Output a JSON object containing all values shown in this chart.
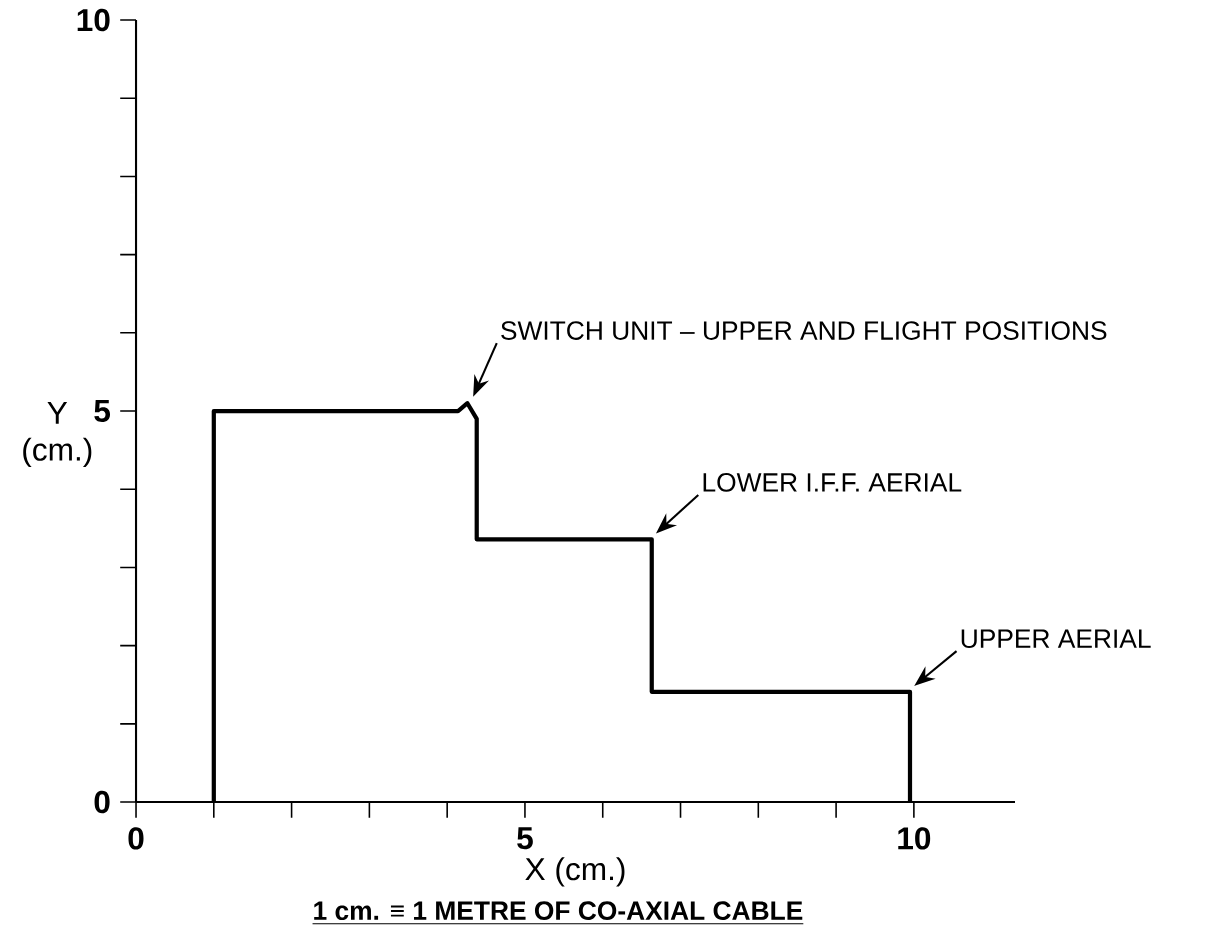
{
  "chart_data": {
    "type": "line",
    "xlabel": "X (cm.)",
    "ylabel": "Y (cm.)",
    "x": [
      1,
      1,
      4.14,
      4.26,
      4.38,
      4.38,
      6.63,
      6.63,
      9.95,
      9.95
    ],
    "series": [
      {
        "color": "#000000",
        "values": [
          0,
          5,
          5,
          5.1,
          4.9,
          3.36,
          3.36,
          1.41,
          1.41,
          0
        ]
      }
    ],
    "xlim": [
      0,
      11.3
    ],
    "ylim": [
      0,
      10
    ],
    "xticks": [
      0,
      {
        "value": 1,
        "label": null
      },
      {
        "value": 2,
        "label": null
      },
      {
        "value": 3,
        "label": null
      },
      {
        "value": 4,
        "label": null
      },
      5,
      {
        "value": 6,
        "label": null
      },
      {
        "value": 7,
        "label": null
      },
      {
        "value": 8,
        "label": null
      },
      {
        "value": 9,
        "label": null
      },
      10
    ],
    "yticks": [
      0,
      {
        "value": 1,
        "label": null
      },
      {
        "value": 2,
        "label": null
      },
      {
        "value": 3,
        "label": null
      },
      {
        "value": 4,
        "label": null
      },
      5,
      {
        "value": 6,
        "label": null
      },
      {
        "value": 7,
        "label": null
      },
      {
        "value": 8,
        "label": null
      },
      {
        "value": 9,
        "label": null
      },
      10
    ],
    "marker": "none",
    "line_style": "solid",
    "grid": false,
    "annotations": [
      {
        "text": "SWITCH UNIT – UPPER AND FLIGHT POSITIONS",
        "x": 4.3,
        "y": 5.15
      },
      {
        "text": "LOWER I.F.F. AERIAL",
        "x": 6.65,
        "y": 3.4
      },
      {
        "text": "UPPER AERIAL",
        "x": 9.97,
        "y": 1.45
      },
      "1 cm. ≡ 1 METRE OF CO-AXIAL CABLE"
    ]
  }
}
